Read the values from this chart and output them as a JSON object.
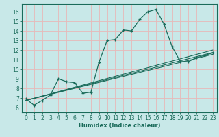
{
  "title": "",
  "xlabel": "Humidex (Indice chaleur)",
  "xlim": [
    -0.5,
    23.5
  ],
  "ylim": [
    5.5,
    16.8
  ],
  "xticks": [
    0,
    1,
    2,
    3,
    4,
    5,
    6,
    7,
    8,
    9,
    10,
    11,
    12,
    13,
    14,
    15,
    16,
    17,
    18,
    19,
    20,
    21,
    22,
    23
  ],
  "yticks": [
    6,
    7,
    8,
    9,
    10,
    11,
    12,
    13,
    14,
    15,
    16
  ],
  "background_color": "#c8e8e8",
  "grid_color": "#e8b8b8",
  "line_color": "#1a6b5a",
  "series": [
    [
      0,
      6.9
    ],
    [
      1,
      6.25
    ],
    [
      2,
      6.75
    ],
    [
      3,
      7.3
    ],
    [
      4,
      9.0
    ],
    [
      5,
      8.7
    ],
    [
      6,
      8.6
    ],
    [
      7,
      7.5
    ],
    [
      8,
      7.6
    ],
    [
      9,
      10.75
    ],
    [
      10,
      13.0
    ],
    [
      11,
      13.1
    ],
    [
      12,
      14.1
    ],
    [
      13,
      14.0
    ],
    [
      14,
      15.2
    ],
    [
      15,
      16.0
    ],
    [
      16,
      16.25
    ],
    [
      17,
      14.7
    ],
    [
      18,
      12.35
    ],
    [
      19,
      10.8
    ],
    [
      20,
      10.8
    ],
    [
      21,
      11.2
    ],
    [
      22,
      11.45
    ],
    [
      23,
      11.7
    ]
  ],
  "reg_line1": [
    [
      0,
      6.75
    ],
    [
      23,
      11.55
    ]
  ],
  "reg_line2": [
    [
      0,
      6.75
    ],
    [
      23,
      11.75
    ]
  ],
  "reg_line3": [
    [
      0,
      6.75
    ],
    [
      23,
      12.0
    ]
  ]
}
